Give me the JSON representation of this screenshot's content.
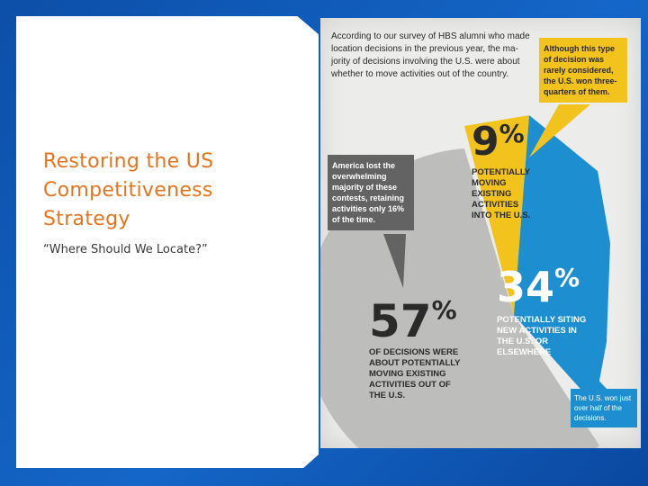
{
  "slide": {
    "title": "Restoring the US Competitiveness Strategy",
    "subtitle": "“Where Should We Locate?”"
  },
  "infographic": {
    "intro": "According to our survey of HBS alumni who made location decisions in the previous year, the ma-jority of decisions involving the U.S. were about whether to move activities out of the country.",
    "callout_yellow": "Although this type of decision was rarely considered, the U.S. won three-quarters of them.",
    "callout_gray": "America lost the overwhelming majority of these contests, retaining activities only 16% of the time.",
    "callout_blue": "The U.S. won just over half of the decisions.",
    "slices": [
      {
        "big": "9",
        "pct": "%",
        "label": "POTENTIALLY MOVING EXISTING ACTIVITIES INTO THE U.S.",
        "value": 9,
        "color": "#f2c31d"
      },
      {
        "big": "34",
        "pct": "%",
        "label": "POTENTIALLY SITING NEW ACTIVITIES IN THE U.S. OR ELSEWHERE",
        "value": 34,
        "color": "#1d8fd0"
      },
      {
        "big": "57",
        "pct": "%",
        "label": "OF DECISIONS WERE ABOUT POTENTIALLY MOVING EXISTING ACTIVITIES OUT OF THE U.S.",
        "value": 57,
        "color": "#bdbdbc"
      }
    ],
    "colors": {
      "orange": "#e8731c",
      "yellow": "#f2c31d",
      "blue": "#1d8fd0",
      "gray": "#bdbdbc",
      "dark_gray": "#636363"
    }
  }
}
